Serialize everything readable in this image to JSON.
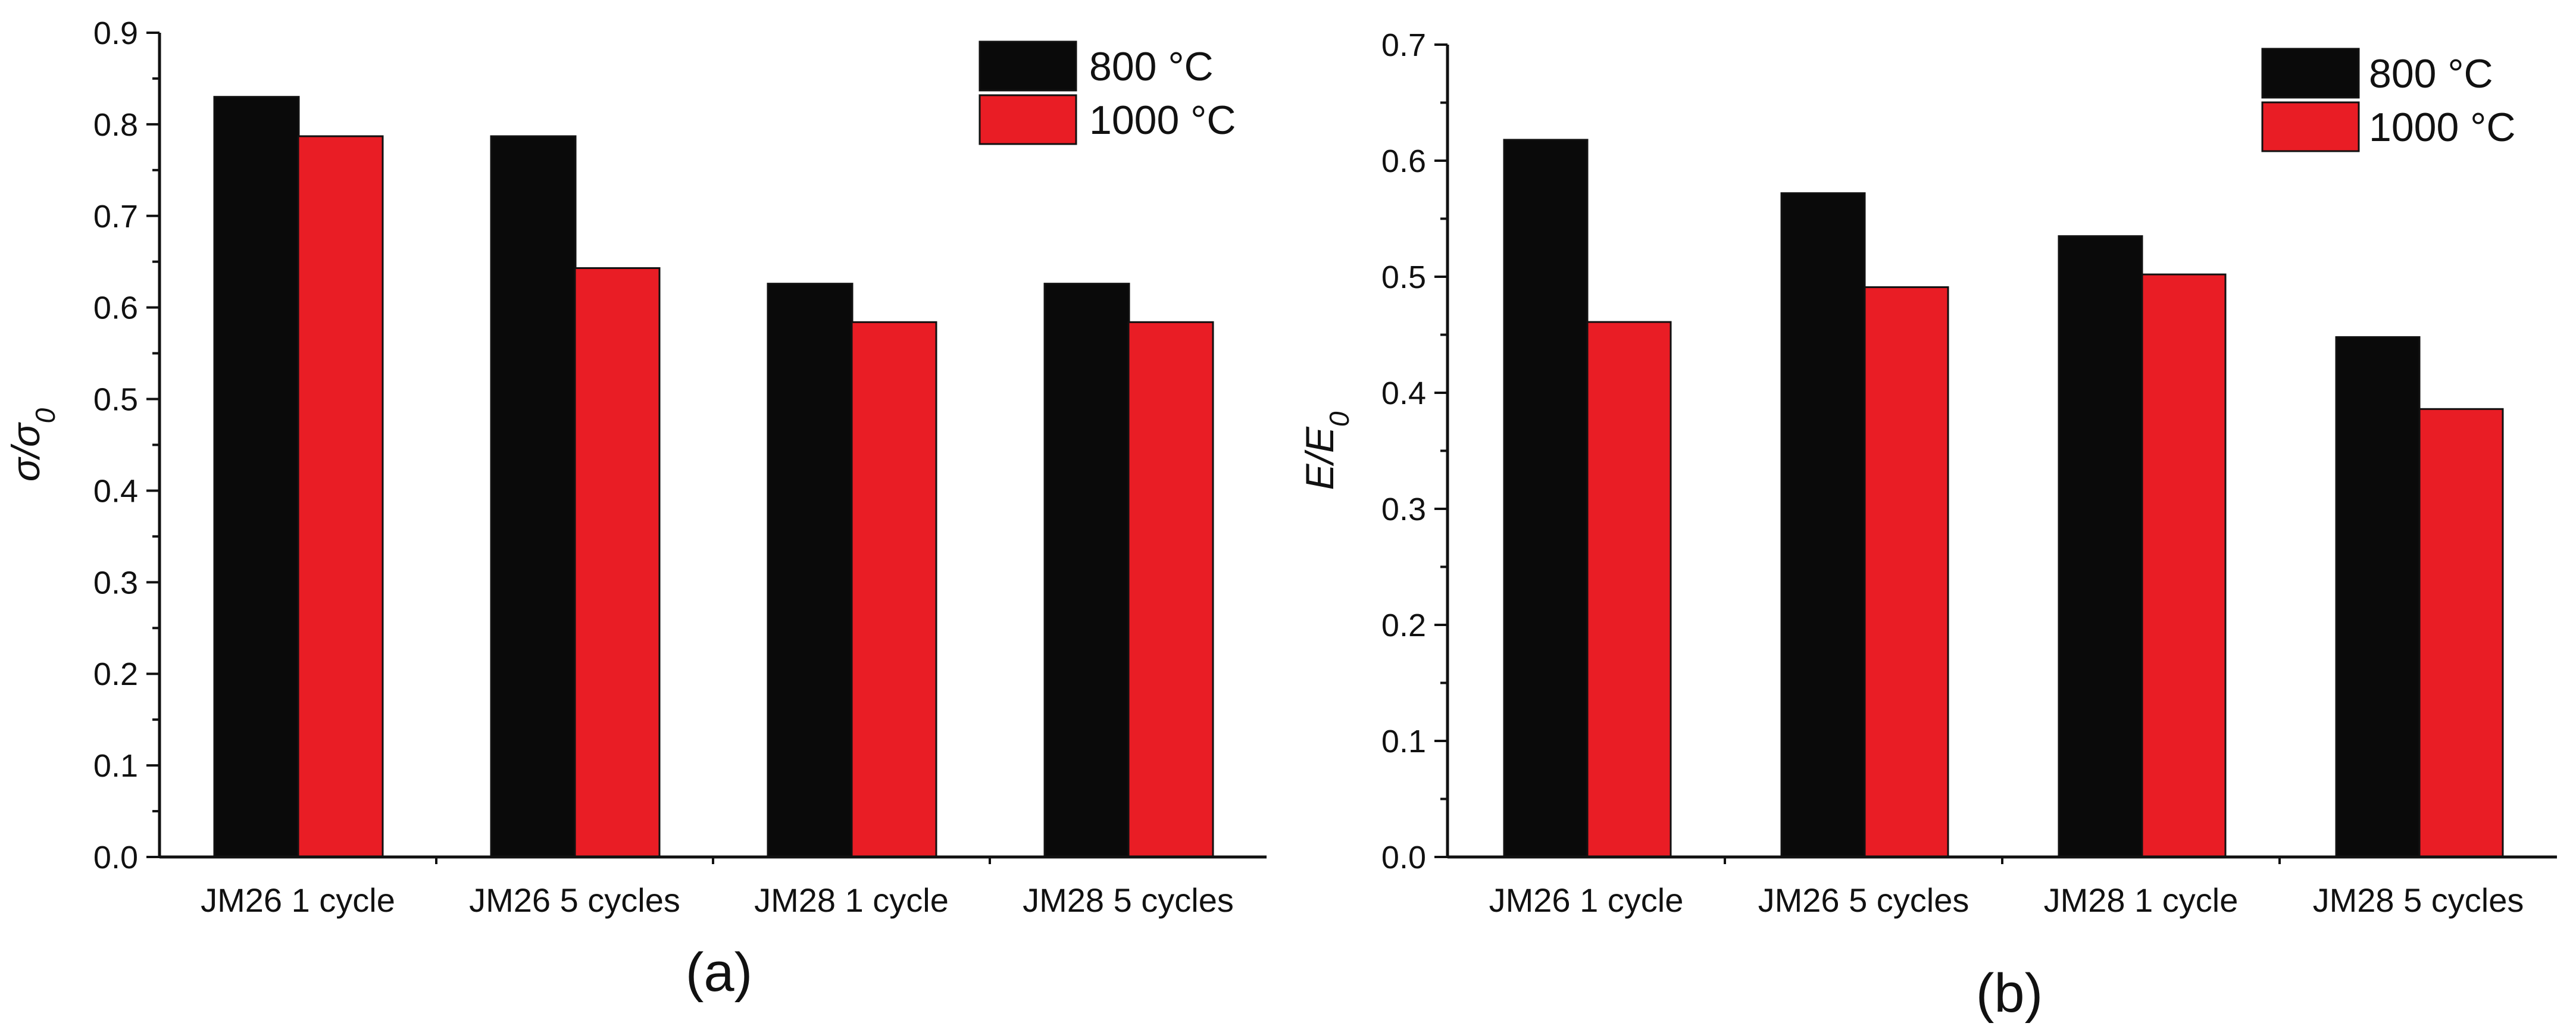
{
  "chart_data": [
    {
      "id": "a",
      "type": "bar",
      "panel_label": "(a)",
      "ylabel_base": "σ/σ",
      "ylabel_sub": "0",
      "ylim": [
        0,
        0.9
      ],
      "yticks": [
        "0.0",
        "0.1",
        "0.2",
        "0.3",
        "0.4",
        "0.5",
        "0.6",
        "0.7",
        "0.8",
        "0.9"
      ],
      "categories": [
        "JM26 1 cycle",
        "JM26 5 cycles",
        "JM28 1 cycle",
        "JM28 5 cycles"
      ],
      "series": [
        {
          "name": "800 °C",
          "color": "#0a0a0a",
          "values": [
            0.83,
            0.787,
            0.626,
            0.626
          ]
        },
        {
          "name": "1000 °C",
          "color": "#e91d25",
          "values": [
            0.787,
            0.643,
            0.584,
            0.584
          ]
        }
      ],
      "legend_position": "top-right"
    },
    {
      "id": "b",
      "type": "bar",
      "panel_label": "(b)",
      "ylabel_base": "E/E",
      "ylabel_sub": "0",
      "ylim": [
        0,
        0.7
      ],
      "yticks": [
        "0.0",
        "0.1",
        "0.2",
        "0.3",
        "0.4",
        "0.5",
        "0.6",
        "0.7"
      ],
      "categories": [
        "JM26 1 cycle",
        "JM26 5 cycles",
        "JM28 1 cycle",
        "JM28 5 cycles"
      ],
      "series": [
        {
          "name": "800 °C",
          "color": "#0a0a0a",
          "values": [
            0.618,
            0.572,
            0.535,
            0.448
          ]
        },
        {
          "name": "1000 °C",
          "color": "#e91d25",
          "values": [
            0.461,
            0.491,
            0.502,
            0.386
          ]
        }
      ],
      "legend_position": "top-right"
    }
  ]
}
